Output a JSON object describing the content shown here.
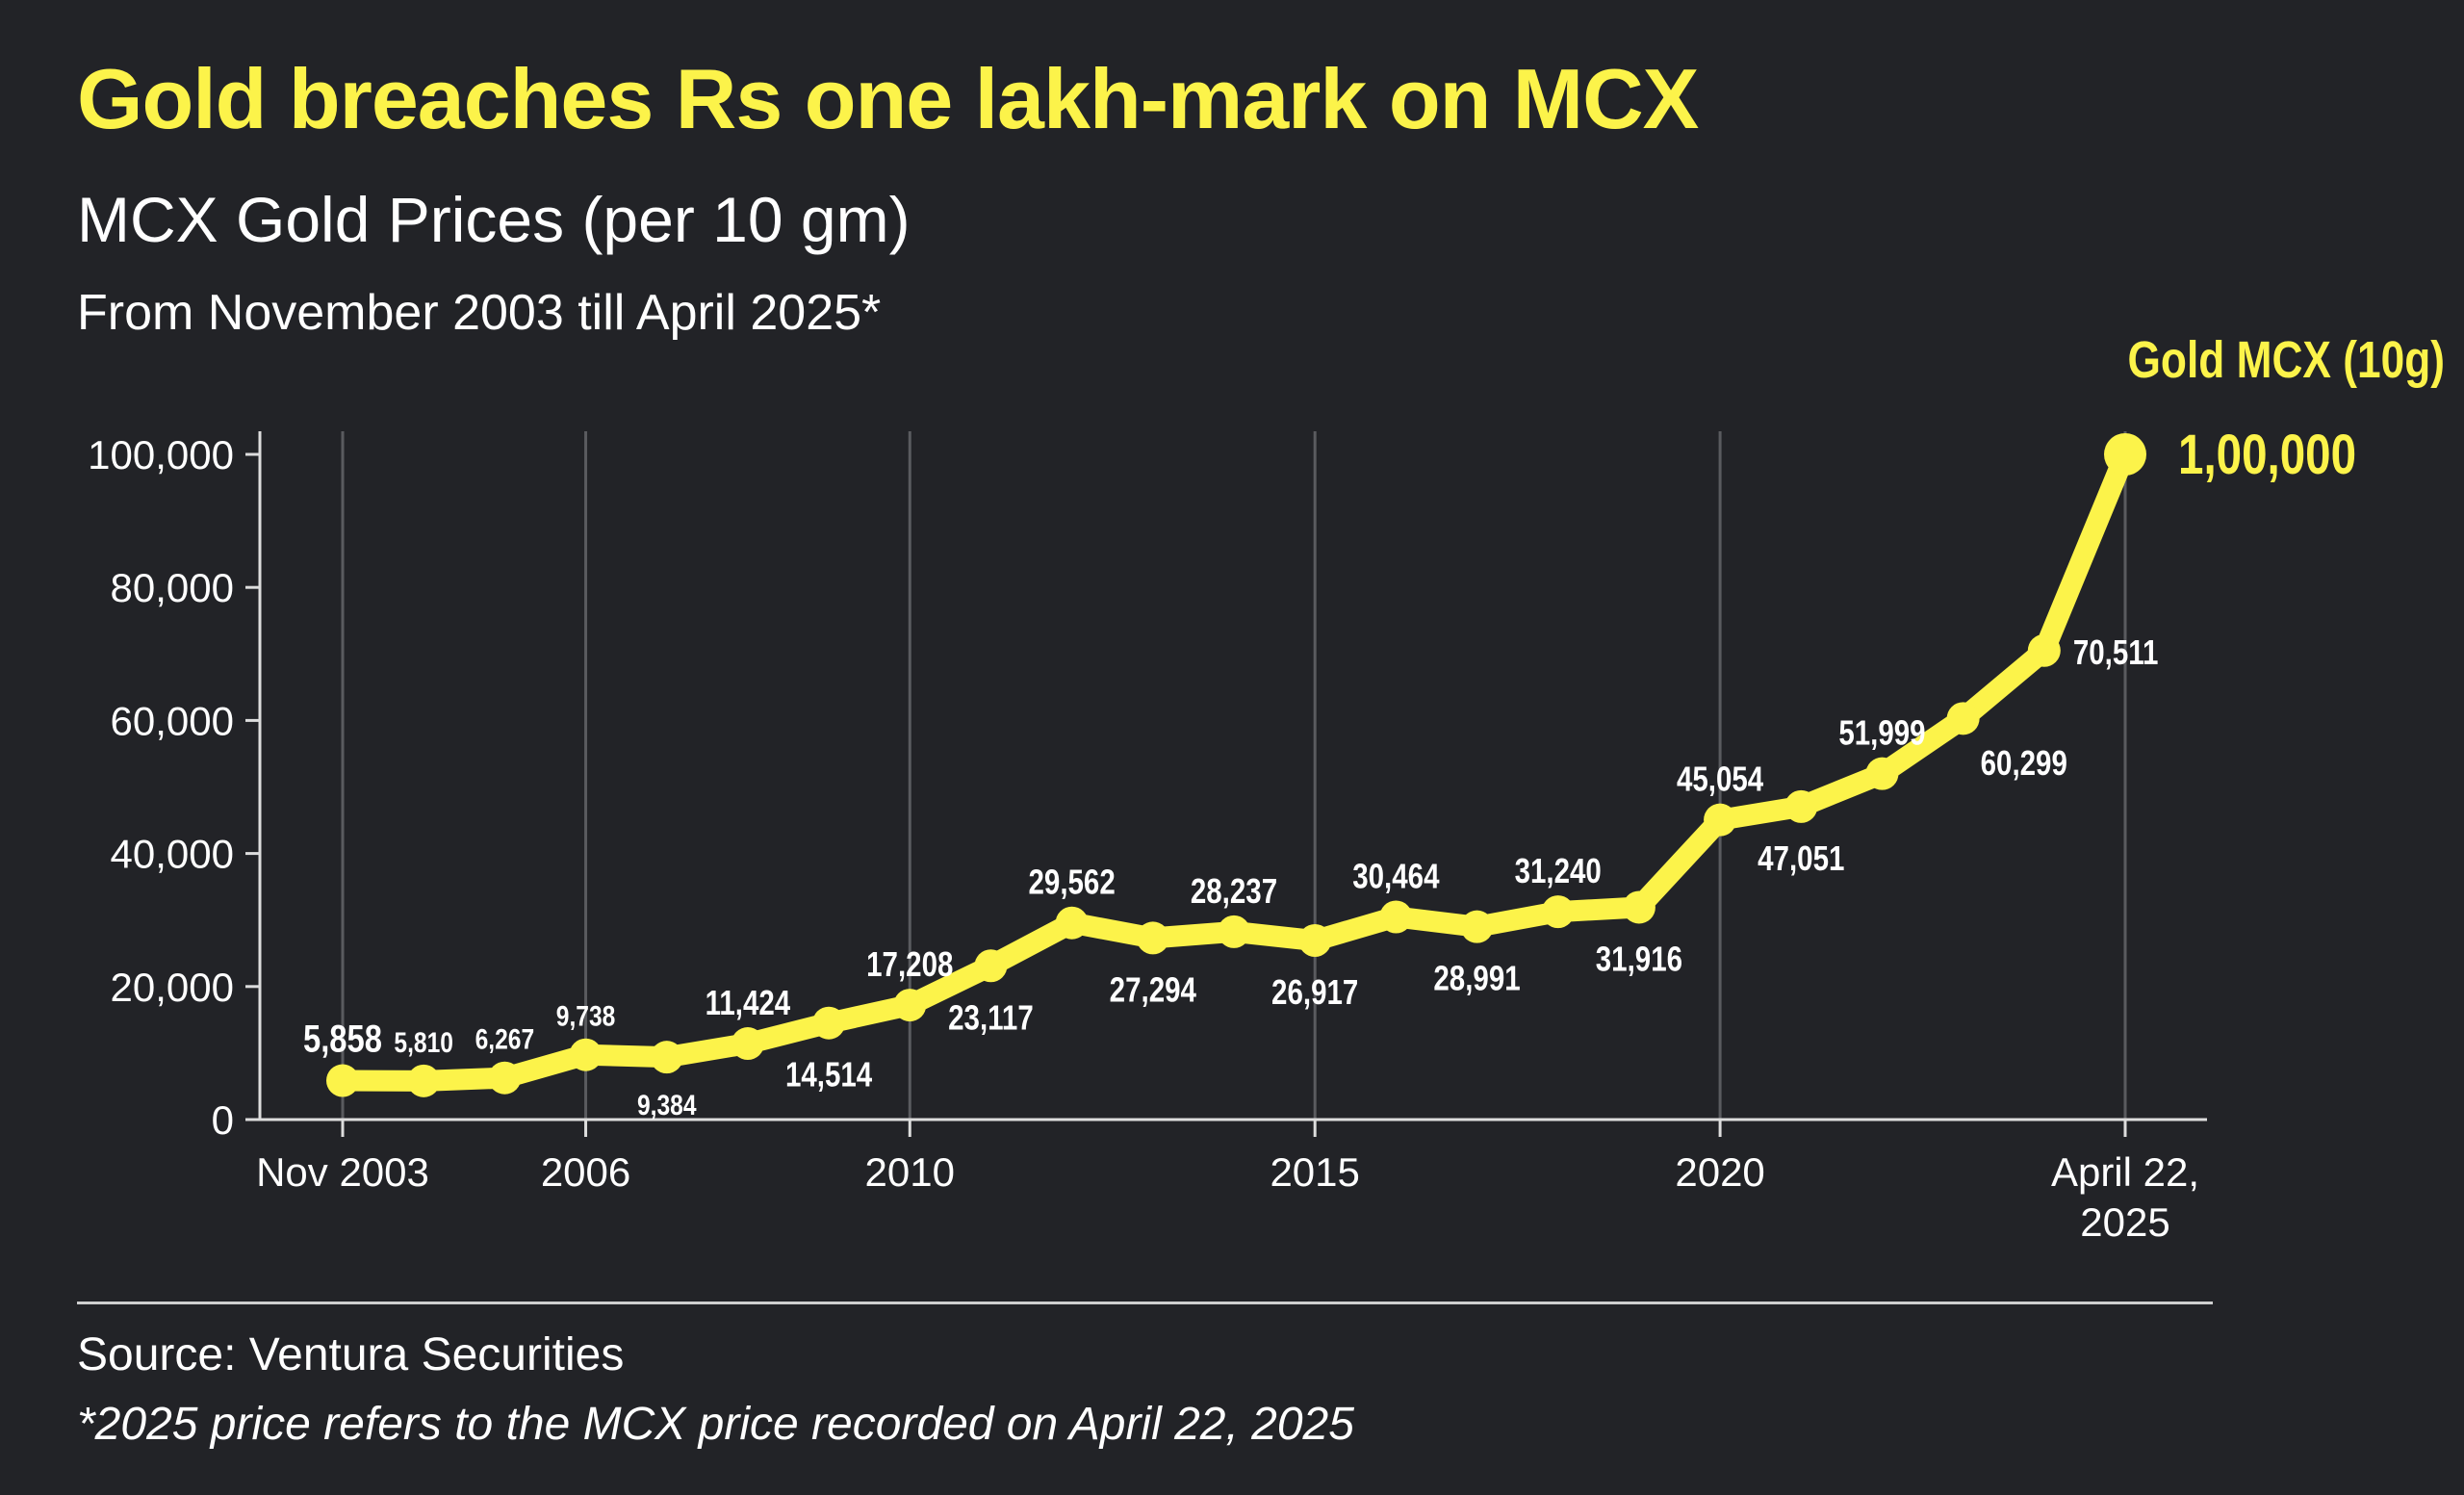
{
  "header": {
    "title": "Gold breaches Rs one lakh-mark on MCX",
    "subtitle": "MCX Gold Prices (per 10 gm)",
    "subline": "From November 2003 till April 2025*"
  },
  "chart_data": {
    "type": "line",
    "title": "MCX Gold Prices (per 10 gm)",
    "series": [
      {
        "name": "Gold MCX (10g)",
        "x": [
          2003,
          2004,
          2005,
          2006,
          2007,
          2008,
          2009,
          2010,
          2011,
          2012,
          2013,
          2014,
          2015,
          2016,
          2017,
          2018,
          2019,
          2020,
          2021,
          2022,
          2023,
          2024,
          2025
        ],
        "values": [
          5858,
          5810,
          6267,
          9738,
          9384,
          11424,
          14514,
          17208,
          23117,
          29562,
          27294,
          28237,
          26917,
          30464,
          28991,
          31240,
          31916,
          45054,
          47051,
          51999,
          60299,
          70511,
          100000
        ],
        "labels": [
          "5,858",
          "5,810",
          "6,267",
          "9,738",
          "9,384",
          "11,424",
          "14,514",
          "17,208",
          "23,117",
          "29,562",
          "27,294",
          "28,237",
          "26,917",
          "30,464",
          "28,991",
          "31,240",
          "31,916",
          "45,054",
          "47,051",
          "51,999",
          "60,299",
          "70,511",
          "1,00,000"
        ]
      }
    ],
    "ylim": [
      0,
      100000
    ],
    "yticks": [
      0,
      20000,
      40000,
      60000,
      80000,
      100000
    ],
    "ytick_labels": [
      "0",
      "20,000",
      "40,000",
      "60,000",
      "80,000",
      "100,000"
    ],
    "xtick_index": [
      0,
      3,
      7,
      12,
      17,
      22
    ],
    "xtick_labels": [
      [
        "Nov 2003"
      ],
      [
        "2006"
      ],
      [
        "2010"
      ],
      [
        "2015"
      ],
      [
        "2020"
      ],
      [
        "April 22,",
        "2025"
      ]
    ],
    "series_label": "Gold MCX (10g)",
    "grid": "vertical at x ticks",
    "colors": {
      "line": "#fcf34a",
      "background": "#222327",
      "text": "#ffffff"
    }
  },
  "footer": {
    "source": "Source: Ventura Securities",
    "note": "*2025 price refers to the MCX price recorded on April 22, 2025"
  }
}
